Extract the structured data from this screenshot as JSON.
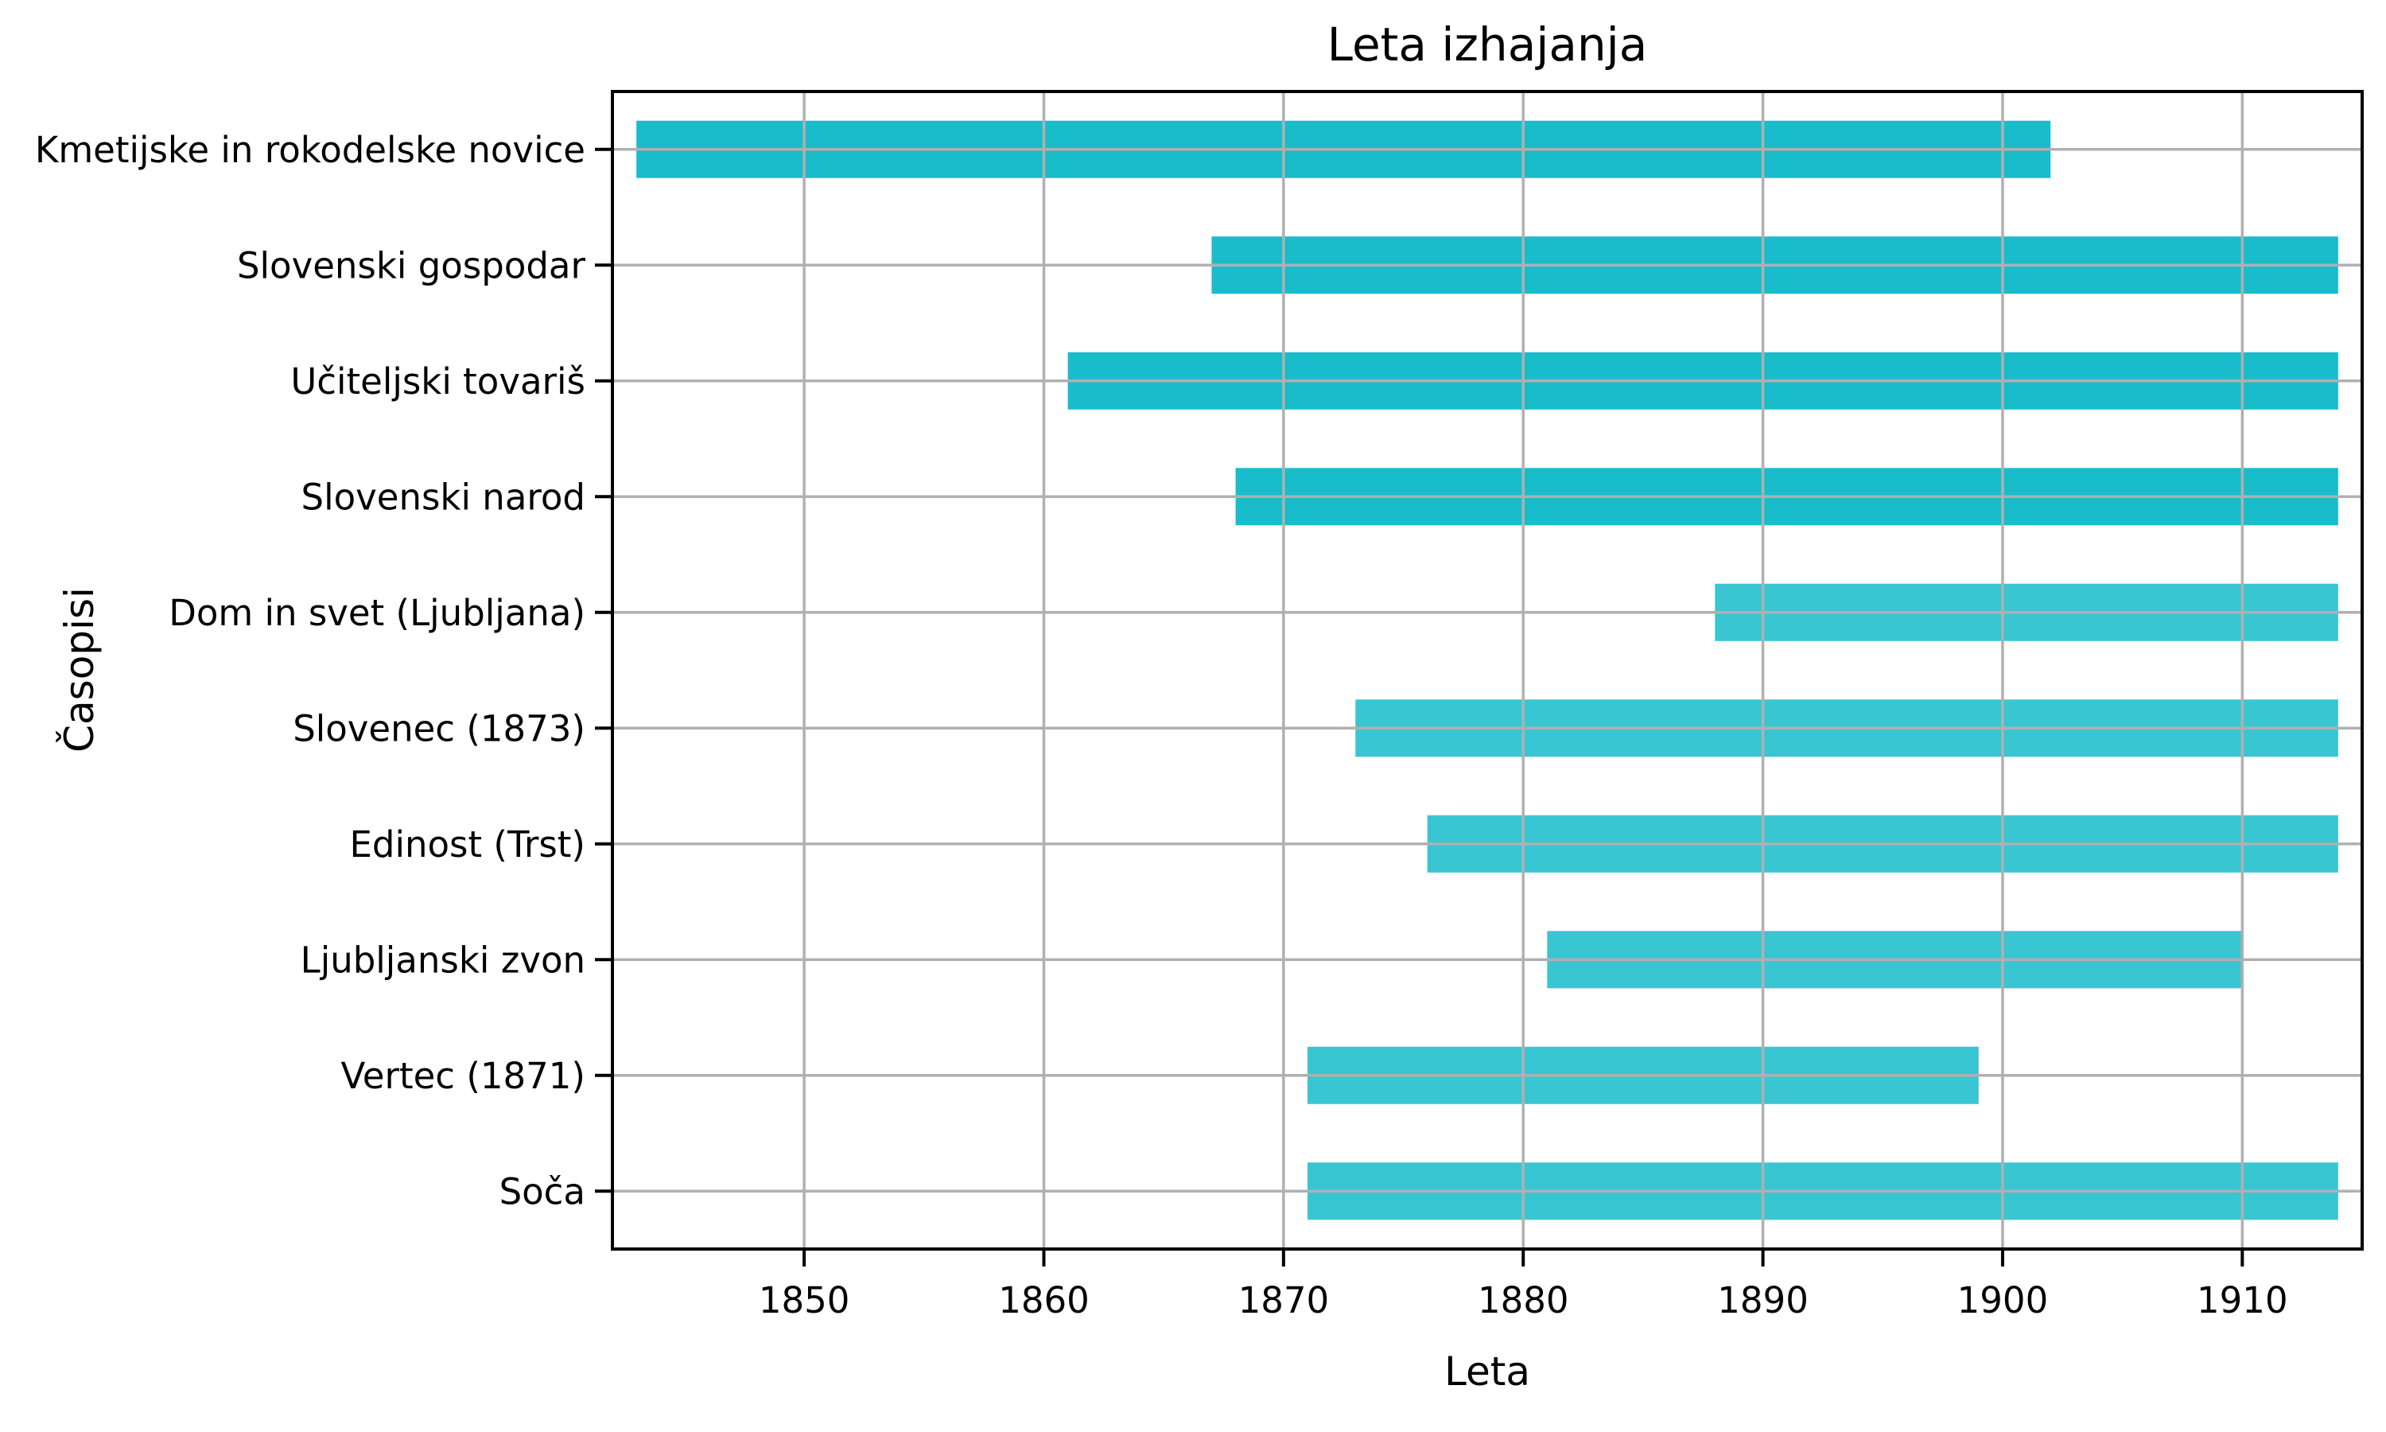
{
  "chart_data": {
    "type": "bar",
    "variant": "horizontal-range-bars",
    "title": "Leta izhajanja",
    "xlabel": "Leta",
    "ylabel": "Časopisi",
    "xlim": [
      1842,
      1915
    ],
    "xticks": [
      1850,
      1860,
      1870,
      1880,
      1890,
      1900,
      1910
    ],
    "grid": true,
    "legend_position": "none",
    "grid_color": "#b0b0b0",
    "spine_color": "#000000",
    "bar_color_dark": "#19bccb",
    "bar_color_light": "#3ac5d3",
    "categories": [
      "Kmetijske in rokodelske novice",
      "Slovenski gospodar",
      "Učiteljski tovariš",
      "Slovenski narod",
      "Dom in svet (Ljubljana)",
      "Slovenec (1873)",
      "Edinost (Trst)",
      "Ljubljanski zvon",
      "Vertec (1871)",
      "Soča"
    ],
    "bars": [
      {
        "label": "Kmetijske in rokodelske novice",
        "start": 1843,
        "end": 1902,
        "color": "#19bccb"
      },
      {
        "label": "Slovenski gospodar",
        "start": 1867,
        "end": 1914,
        "color": "#19bccb"
      },
      {
        "label": "Učiteljski tovariš",
        "start": 1861,
        "end": 1914,
        "color": "#19bccb"
      },
      {
        "label": "Slovenski narod",
        "start": 1868,
        "end": 1914,
        "color": "#19bccb"
      },
      {
        "label": "Dom in svet (Ljubljana)",
        "start": 1888,
        "end": 1914,
        "color": "#3ac5d3"
      },
      {
        "label": "Slovenec (1873)",
        "start": 1873,
        "end": 1914,
        "color": "#3ac5d3"
      },
      {
        "label": "Edinost (Trst)",
        "start": 1876,
        "end": 1914,
        "color": "#3ac5d3"
      },
      {
        "label": "Ljubljanski zvon",
        "start": 1881,
        "end": 1910,
        "color": "#3ac5d3"
      },
      {
        "label": "Vertec (1871)",
        "start": 1871,
        "end": 1899,
        "color": "#3ac5d3"
      },
      {
        "label": "Soča",
        "start": 1871,
        "end": 1914,
        "color": "#3ac5d3"
      }
    ]
  }
}
